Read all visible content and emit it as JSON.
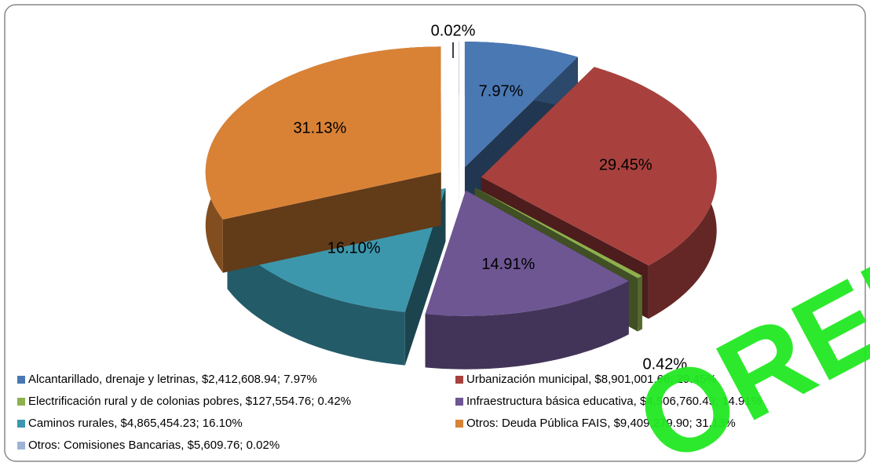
{
  "chart_data": {
    "type": "pie",
    "categories": [
      "Alcantarillado, drenaje y letrinas, $2,412,608.94;  7.97%",
      "Urbanización municipal, $8,901,001.66;  29.45%",
      "Electrificación rural y de colonias pobres, $127,554.76;  0.42%",
      "Infraestructura básica educativa, $4,506,760.49;  14.91%",
      "Caminos rurales, $4,865,454.23;  16.10%",
      "Otros: Deuda Pública FAIS, $9,409,279.90;  31.13%",
      "Otros: Comisiones Bancarias, $5,609.76;  0.02%"
    ],
    "values": [
      7.97,
      29.45,
      0.42,
      14.91,
      16.1,
      31.13,
      0.02
    ],
    "value_labels": [
      "7.97%",
      "29.45%",
      "0.42%",
      "14.91%",
      "16.10%",
      "31.13%",
      "0.02%"
    ],
    "colors": [
      "#4a78b3",
      "#a8413e",
      "#8fb04f",
      "#6e5693",
      "#3c97ad",
      "#d98236",
      "#9fb3d6"
    ],
    "legend": "bottom",
    "watermark": "OREIS"
  }
}
